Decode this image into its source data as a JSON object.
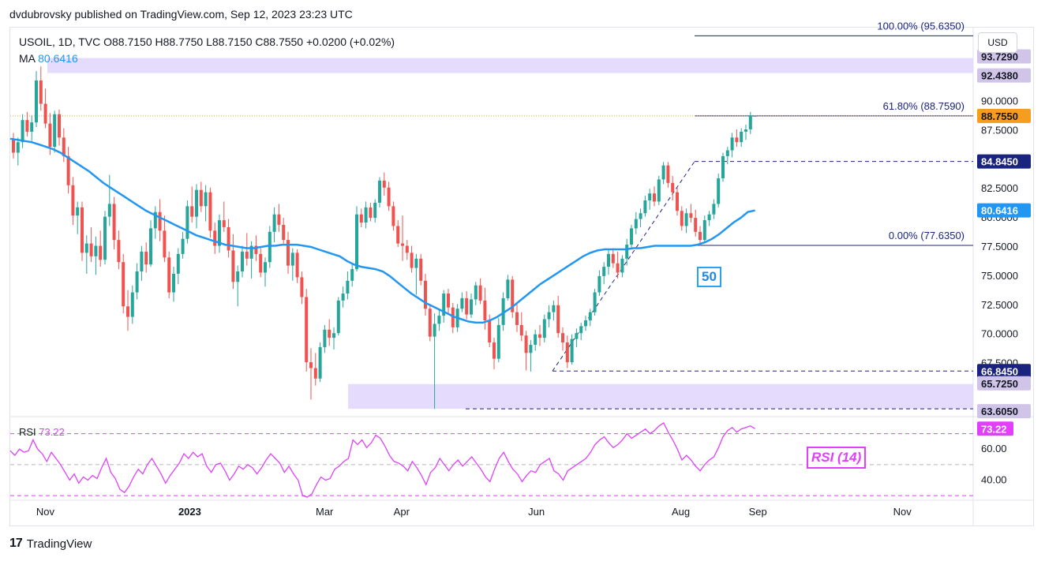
{
  "publisher_line": "dvdubrovsky published on TradingView.com, Sep 12, 2023 23:23 UTC",
  "legend": {
    "symbol_line": "USOIL, 1D, TVC  O88.7150  H88.7750  L88.7150  C88.7550  +0.0200 (+0.02%)",
    "ma_label": "MA",
    "ma_value": "80.6416"
  },
  "currency": "USD",
  "rsi_legend": {
    "label": "RSI",
    "value": "73.22"
  },
  "annotations": {
    "sma_tag": "50",
    "rsi_tag": "RSI (14)"
  },
  "footer": {
    "logo_glyph": "17",
    "brand": "TradingView"
  },
  "colors": {
    "candle_up": "#26a69a",
    "candle_down": "#ef5350",
    "ma": "#2196f3",
    "rsi": "#e040fb",
    "zone": "#e1d5fb",
    "level_line": "#1a237e",
    "price_tag": "#f59d1e",
    "rsi_dash": "#e040fb"
  },
  "chart_data": {
    "type": "candlestick",
    "symbol": "USOIL",
    "timeframe": "1D",
    "x_ticks": [
      {
        "label": "Nov",
        "pos": 0.02
      },
      {
        "label": "2023",
        "pos": 0.17
      },
      {
        "label": "Mar",
        "pos": 0.31
      },
      {
        "label": "Apr",
        "pos": 0.39
      },
      {
        "label": "Jun",
        "pos": 0.53
      },
      {
        "label": "Aug",
        "pos": 0.68
      },
      {
        "label": "Sep",
        "pos": 0.76
      },
      {
        "label": "Nov",
        "pos": 0.91
      }
    ],
    "y_ticks": [
      90.0,
      87.5,
      82.5,
      80.0,
      77.5,
      75.0,
      72.5,
      70.0,
      67.5
    ],
    "y_tick_labels": [
      "90.0000",
      "87.5000",
      "82.5000",
      "80.0000",
      "77.5000",
      "75.0000",
      "72.5000",
      "70.0000",
      "67.5000"
    ],
    "ylim": [
      63.0,
      96.0
    ],
    "ohlc": [
      [
        86.8,
        87.3,
        85.1,
        85.6
      ],
      [
        85.6,
        86.9,
        84.5,
        86.5
      ],
      [
        86.5,
        88.9,
        86.0,
        88.4
      ],
      [
        88.4,
        89.1,
        87.0,
        87.4
      ],
      [
        87.4,
        88.8,
        86.6,
        88.2
      ],
      [
        88.2,
        92.6,
        87.8,
        91.8
      ],
      [
        91.8,
        93.0,
        89.2,
        89.8
      ],
      [
        89.8,
        91.1,
        87.7,
        88.1
      ],
      [
        88.1,
        89.0,
        85.4,
        86.1
      ],
      [
        86.1,
        89.2,
        85.6,
        88.9
      ],
      [
        88.9,
        89.3,
        86.2,
        86.9
      ],
      [
        86.9,
        87.7,
        84.8,
        85.3
      ],
      [
        85.3,
        86.1,
        82.1,
        82.8
      ],
      [
        82.8,
        83.5,
        79.4,
        80.2
      ],
      [
        80.2,
        81.4,
        78.6,
        80.9
      ],
      [
        80.9,
        81.4,
        76.3,
        77.0
      ],
      [
        77.0,
        78.5,
        75.2,
        77.8
      ],
      [
        77.8,
        79.2,
        76.2,
        76.7
      ],
      [
        76.7,
        78.4,
        75.1,
        77.6
      ],
      [
        77.6,
        78.9,
        75.8,
        76.4
      ],
      [
        76.4,
        80.6,
        76.0,
        80.1
      ],
      [
        80.1,
        83.7,
        79.3,
        81.2
      ],
      [
        81.2,
        81.8,
        77.3,
        78.1
      ],
      [
        78.1,
        78.9,
        75.6,
        76.2
      ],
      [
        76.2,
        76.9,
        71.8,
        72.4
      ],
      [
        72.4,
        73.8,
        70.3,
        71.5
      ],
      [
        71.5,
        74.2,
        70.9,
        73.6
      ],
      [
        73.6,
        76.1,
        73.0,
        75.4
      ],
      [
        75.4,
        77.6,
        74.6,
        77.1
      ],
      [
        77.1,
        77.9,
        75.3,
        76.0
      ],
      [
        76.0,
        79.8,
        75.8,
        79.1
      ],
      [
        79.1,
        81.0,
        78.2,
        80.5
      ],
      [
        80.5,
        81.6,
        78.0,
        78.9
      ],
      [
        78.9,
        80.2,
        76.2,
        76.6
      ],
      [
        76.6,
        77.1,
        73.1,
        73.6
      ],
      [
        73.6,
        75.8,
        72.8,
        75.2
      ],
      [
        75.2,
        77.4,
        74.3,
        76.9
      ],
      [
        76.9,
        78.8,
        76.5,
        78.2
      ],
      [
        78.2,
        81.5,
        77.8,
        81.0
      ],
      [
        81.0,
        82.7,
        79.6,
        80.1
      ],
      [
        80.1,
        82.9,
        79.1,
        82.4
      ],
      [
        82.4,
        83.1,
        80.5,
        81.0
      ],
      [
        81.0,
        82.8,
        79.7,
        82.2
      ],
      [
        82.2,
        82.6,
        78.3,
        78.9
      ],
      [
        78.9,
        79.6,
        76.9,
        77.6
      ],
      [
        77.6,
        80.3,
        77.0,
        79.8
      ],
      [
        79.8,
        81.4,
        78.8,
        79.2
      ],
      [
        79.2,
        79.9,
        76.6,
        77.2
      ],
      [
        77.2,
        78.6,
        73.9,
        74.5
      ],
      [
        74.5,
        75.9,
        72.4,
        75.4
      ],
      [
        75.4,
        77.6,
        74.9,
        77.1
      ],
      [
        77.1,
        78.7,
        75.9,
        76.5
      ],
      [
        76.5,
        78.0,
        74.8,
        77.6
      ],
      [
        77.6,
        78.5,
        76.3,
        76.9
      ],
      [
        76.9,
        77.4,
        74.9,
        75.3
      ],
      [
        75.3,
        76.6,
        74.1,
        76.2
      ],
      [
        76.2,
        79.3,
        75.7,
        78.8
      ],
      [
        78.8,
        80.9,
        77.9,
        80.3
      ],
      [
        80.3,
        81.2,
        78.8,
        79.4
      ],
      [
        79.4,
        80.0,
        77.8,
        78.1
      ],
      [
        78.1,
        78.8,
        75.2,
        75.9
      ],
      [
        75.9,
        77.4,
        74.6,
        77.0
      ],
      [
        77.0,
        77.3,
        74.4,
        74.9
      ],
      [
        74.9,
        75.4,
        72.6,
        73.2
      ],
      [
        73.2,
        73.9,
        66.8,
        67.6
      ],
      [
        67.6,
        68.8,
        64.4,
        67.1
      ],
      [
        67.1,
        68.4,
        65.6,
        66.2
      ],
      [
        66.2,
        69.3,
        65.9,
        68.9
      ],
      [
        68.9,
        70.8,
        68.4,
        70.4
      ],
      [
        70.4,
        71.3,
        69.0,
        69.7
      ],
      [
        69.7,
        70.6,
        68.7,
        70.1
      ],
      [
        70.1,
        73.2,
        69.9,
        72.9
      ],
      [
        72.9,
        74.1,
        72.3,
        73.5
      ],
      [
        73.5,
        75.4,
        73.0,
        74.6
      ],
      [
        74.6,
        76.0,
        74.1,
        75.6
      ],
      [
        75.6,
        81.0,
        75.4,
        80.3
      ],
      [
        80.3,
        80.8,
        79.2,
        79.6
      ],
      [
        79.6,
        81.4,
        79.1,
        80.9
      ],
      [
        80.9,
        81.3,
        79.7,
        80.0
      ],
      [
        80.0,
        81.6,
        79.6,
        81.3
      ],
      [
        81.3,
        83.5,
        80.9,
        83.2
      ],
      [
        83.2,
        83.9,
        81.9,
        82.6
      ],
      [
        82.6,
        83.1,
        80.6,
        81.0
      ],
      [
        81.0,
        81.4,
        78.9,
        79.3
      ],
      [
        79.3,
        79.8,
        77.5,
        77.8
      ],
      [
        77.8,
        80.2,
        76.3,
        77.6
      ],
      [
        77.6,
        78.1,
        76.4,
        77.0
      ],
      [
        77.0,
        77.6,
        75.3,
        75.7
      ],
      [
        75.7,
        76.9,
        73.4,
        76.5
      ],
      [
        76.5,
        76.9,
        74.2,
        74.6
      ],
      [
        74.6,
        75.2,
        71.6,
        72.2
      ],
      [
        72.2,
        72.6,
        69.4,
        69.8
      ],
      [
        69.8,
        71.8,
        63.6,
        70.9
      ],
      [
        70.9,
        72.1,
        70.3,
        71.6
      ],
      [
        71.6,
        73.8,
        71.0,
        73.5
      ],
      [
        73.5,
        73.9,
        71.8,
        72.3
      ],
      [
        72.3,
        72.7,
        70.1,
        70.6
      ],
      [
        70.6,
        72.6,
        70.2,
        72.2
      ],
      [
        72.2,
        73.6,
        71.9,
        73.1
      ],
      [
        73.1,
        73.7,
        71.3,
        71.7
      ],
      [
        71.7,
        73.5,
        71.4,
        73.0
      ],
      [
        73.0,
        74.5,
        72.5,
        74.2
      ],
      [
        74.2,
        74.8,
        72.6,
        72.9
      ],
      [
        72.9,
        74.0,
        70.4,
        71.2
      ],
      [
        71.2,
        71.7,
        68.9,
        69.3
      ],
      [
        69.3,
        69.7,
        67.0,
        67.9
      ],
      [
        67.9,
        71.4,
        67.6,
        70.8
      ],
      [
        70.8,
        73.6,
        70.3,
        73.1
      ],
      [
        73.1,
        75.1,
        72.9,
        74.7
      ],
      [
        74.7,
        75.0,
        71.4,
        71.9
      ],
      [
        71.9,
        72.6,
        70.2,
        70.8
      ],
      [
        70.8,
        71.9,
        69.4,
        69.9
      ],
      [
        69.9,
        70.3,
        66.9,
        68.4
      ],
      [
        68.4,
        69.5,
        66.8,
        69.1
      ],
      [
        69.1,
        70.4,
        68.6,
        70.0
      ],
      [
        70.0,
        70.8,
        69.0,
        69.7
      ],
      [
        69.7,
        71.7,
        69.3,
        71.3
      ],
      [
        71.3,
        72.5,
        70.6,
        71.9
      ],
      [
        71.9,
        72.9,
        71.2,
        72.5
      ],
      [
        72.5,
        73.3,
        69.7,
        70.1
      ],
      [
        70.1,
        70.6,
        68.6,
        69.3
      ],
      [
        69.3,
        69.9,
        67.1,
        67.6
      ],
      [
        67.6,
        70.0,
        67.4,
        69.6
      ],
      [
        69.6,
        70.5,
        68.9,
        70.1
      ],
      [
        70.1,
        71.0,
        69.5,
        70.7
      ],
      [
        70.7,
        71.6,
        70.3,
        71.2
      ],
      [
        71.2,
        72.2,
        70.7,
        71.9
      ],
      [
        71.9,
        73.9,
        71.6,
        73.6
      ],
      [
        73.6,
        75.5,
        73.3,
        75.0
      ],
      [
        75.0,
        76.2,
        74.3,
        75.8
      ],
      [
        75.8,
        77.3,
        75.1,
        76.9
      ],
      [
        76.9,
        77.4,
        75.7,
        76.1
      ],
      [
        76.1,
        77.1,
        74.8,
        75.3
      ],
      [
        75.3,
        76.8,
        74.9,
        76.5
      ],
      [
        76.5,
        78.2,
        75.9,
        77.7
      ],
      [
        77.7,
        79.4,
        77.3,
        79.1
      ],
      [
        79.1,
        80.5,
        78.6,
        79.9
      ],
      [
        79.9,
        80.8,
        79.2,
        80.4
      ],
      [
        80.4,
        81.9,
        80.1,
        81.5
      ],
      [
        81.5,
        82.5,
        80.7,
        82.1
      ],
      [
        82.1,
        82.7,
        81.0,
        81.4
      ],
      [
        81.4,
        83.6,
        81.1,
        83.3
      ],
      [
        83.3,
        84.8,
        82.9,
        84.5
      ],
      [
        84.5,
        84.8,
        82.6,
        83.0
      ],
      [
        83.0,
        83.6,
        81.5,
        82.2
      ],
      [
        82.2,
        82.6,
        80.2,
        80.6
      ],
      [
        80.6,
        81.0,
        78.9,
        79.3
      ],
      [
        79.3,
        80.8,
        78.7,
        80.4
      ],
      [
        80.4,
        81.2,
        79.6,
        80.0
      ],
      [
        80.0,
        80.7,
        78.4,
        78.8
      ],
      [
        78.8,
        79.3,
        77.6,
        78.1
      ],
      [
        78.1,
        80.2,
        77.8,
        79.8
      ],
      [
        79.8,
        80.6,
        79.3,
        80.3
      ],
      [
        80.3,
        81.6,
        79.9,
        81.2
      ],
      [
        81.2,
        83.8,
        80.9,
        83.4
      ],
      [
        83.4,
        85.6,
        83.1,
        85.3
      ],
      [
        85.3,
        86.1,
        84.6,
        85.8
      ],
      [
        85.8,
        87.3,
        85.2,
        86.9
      ],
      [
        86.9,
        87.6,
        86.1,
        86.5
      ],
      [
        86.5,
        87.7,
        86.1,
        87.4
      ],
      [
        87.4,
        88.0,
        86.7,
        87.6
      ],
      [
        87.6,
        89.1,
        87.2,
        88.8
      ],
      [
        88.715,
        88.775,
        88.715,
        88.755
      ]
    ],
    "ma": {
      "name": "MA",
      "period": 50,
      "last_value": 80.6416,
      "values": [
        86.8,
        86.7,
        86.6,
        86.5,
        86.3,
        86.1,
        85.9,
        85.6,
        85.2,
        84.8,
        84.4,
        84.0,
        83.5,
        83.0,
        82.6,
        82.2,
        81.8,
        81.4,
        81.0,
        80.6,
        80.3,
        80.0,
        79.7,
        79.4,
        79.1,
        78.8,
        78.5,
        78.3,
        78.1,
        77.9,
        77.7,
        77.6,
        77.5,
        77.4,
        77.4,
        77.5,
        77.6,
        77.6,
        77.7,
        77.7,
        77.7,
        77.6,
        77.5,
        77.3,
        77.1,
        76.9,
        76.7,
        76.3,
        76.0,
        75.8,
        75.7,
        75.6,
        75.4,
        75.0,
        74.5,
        74.0,
        73.5,
        73.1,
        72.7,
        72.4,
        72.1,
        71.8,
        71.5,
        71.3,
        71.1,
        71.0,
        71.0,
        71.2,
        71.5,
        71.9,
        72.3,
        72.8,
        73.3,
        73.8,
        74.3,
        74.7,
        75.1,
        75.5,
        75.9,
        76.3,
        76.7,
        77.0,
        77.2,
        77.3,
        77.3,
        77.3,
        77.3,
        77.4,
        77.4,
        77.5,
        77.6,
        77.6,
        77.6,
        77.6,
        77.6,
        77.6,
        77.7,
        77.9,
        78.2,
        78.6,
        79.1,
        79.6,
        80.0,
        80.5,
        80.6416
      ],
      "start_index": 0
    },
    "horizontal_levels": [
      {
        "value": 95.635,
        "label": "100.00% (95.6350)",
        "style": "solid"
      },
      {
        "value": 88.759,
        "label": "61.80% (88.7590)",
        "style": "solid"
      },
      {
        "value": 77.635,
        "label": "0.00% (77.6350)",
        "style": "solid"
      },
      {
        "value": 84.845,
        "label": "84.8450",
        "style": "dashed"
      },
      {
        "value": 66.845,
        "label": "66.8450",
        "style": "dashed"
      },
      {
        "value": 63.605,
        "label": "63.6050",
        "style": "dashed"
      }
    ],
    "zones": [
      {
        "from": 92.438,
        "to": 93.729,
        "labels": [
          "93.7290",
          "92.4380"
        ]
      },
      {
        "from": 63.605,
        "to": 65.725,
        "labels": [
          "65.7250"
        ]
      }
    ],
    "price_tags": [
      {
        "value": 93.729,
        "label": "93.7290",
        "color": "#d1c4e9",
        "text_color": "#131722"
      },
      {
        "value": 92.438,
        "label": "92.4380",
        "color": "#d1c4e9",
        "text_color": "#131722"
      },
      {
        "value": 88.755,
        "label": "88.7550",
        "color": "#f59d1e",
        "text_color": "#131722"
      },
      {
        "value": 84.845,
        "label": "84.8450",
        "color": "#1a237e",
        "text_color": "#ffffff"
      },
      {
        "value": 80.6416,
        "label": "80.6416",
        "color": "#2196f3",
        "text_color": "#ffffff"
      },
      {
        "value": 66.845,
        "label": "66.8450",
        "color": "#1a237e",
        "text_color": "#ffffff"
      },
      {
        "value": 65.725,
        "label": "65.7250",
        "color": "#d1c4e9",
        "text_color": "#131722"
      },
      {
        "value": 63.605,
        "label": "63.6050",
        "color": "#d1c4e9",
        "text_color": "#131722"
      }
    ],
    "rsi": {
      "period": 14,
      "last_value": 73.22,
      "ylim": [
        28,
        80
      ],
      "y_ticks": [
        60.0,
        40.0
      ],
      "y_tick_labels": [
        "60.00",
        "40.00"
      ],
      "dashed_levels": [
        70,
        50,
        30
      ],
      "values": [
        59,
        56,
        60,
        58,
        59,
        66,
        60,
        57,
        52,
        58,
        54,
        50,
        45,
        40,
        44,
        38,
        42,
        40,
        43,
        41,
        48,
        54,
        45,
        41,
        34,
        32,
        36,
        42,
        47,
        44,
        50,
        54,
        49,
        44,
        38,
        43,
        47,
        51,
        57,
        54,
        58,
        55,
        57,
        49,
        45,
        50,
        51,
        46,
        40,
        44,
        49,
        47,
        50,
        48,
        44,
        48,
        53,
        57,
        54,
        51,
        45,
        49,
        44,
        40,
        30,
        29,
        31,
        37,
        42,
        40,
        41,
        47,
        49,
        52,
        54,
        66,
        63,
        66,
        61,
        64,
        69,
        67,
        62,
        56,
        52,
        51,
        49,
        46,
        52,
        48,
        43,
        37,
        45,
        48,
        54,
        50,
        46,
        50,
        53,
        49,
        52,
        55,
        51,
        47,
        42,
        39,
        47,
        54,
        58,
        52,
        47,
        44,
        39,
        43,
        46,
        45,
        50,
        52,
        54,
        46,
        44,
        40,
        46,
        48,
        50,
        52,
        54,
        58,
        63,
        66,
        68,
        64,
        61,
        63,
        66,
        70,
        67,
        69,
        71,
        73,
        70,
        72,
        75,
        77,
        71,
        66,
        60,
        53,
        56,
        53,
        49,
        46,
        50,
        53,
        55,
        61,
        68,
        72,
        74,
        71,
        73,
        74,
        75,
        73.22
      ]
    }
  }
}
